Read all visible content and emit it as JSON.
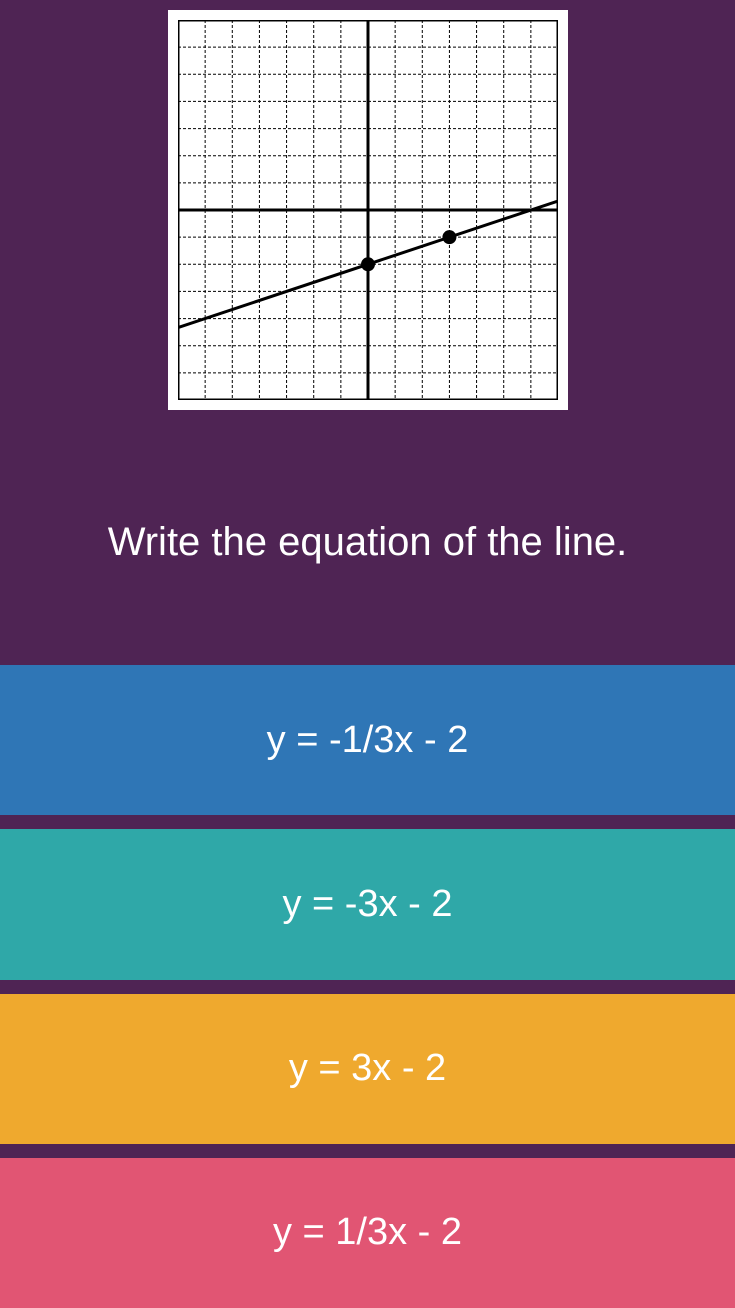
{
  "question": "Write the equation of the line.",
  "graph": {
    "background_color": "#ffffff",
    "frame_border_color": "#000000",
    "grid_color": "#000000",
    "grid_stroke": 1,
    "grid_dash": "3,2",
    "axis_color": "#000000",
    "axis_stroke": 3,
    "x_range": [
      -7,
      7
    ],
    "y_range": [
      -7,
      7
    ],
    "tick_step": 1,
    "line": {
      "slope": 0.333,
      "intercept": -2,
      "stroke": "#000000",
      "stroke_width": 3,
      "points": [
        {
          "x": 0,
          "y": -2,
          "r": 7
        },
        {
          "x": 3,
          "y": -1,
          "r": 7
        }
      ]
    }
  },
  "answers": [
    {
      "label": "y = -1/3x - 2",
      "bg_color": "#2f76b6"
    },
    {
      "label": "y = -3x - 2",
      "bg_color": "#2fa8a8"
    },
    {
      "label": "y = 3x - 2",
      "bg_color": "#efa92e"
    },
    {
      "label": "y = 1/3x - 2",
      "bg_color": "#e15573"
    }
  ],
  "page_bg": "#4f2454",
  "gap_color": "#4f2454",
  "text_color": "#ffffff",
  "question_fontsize": 40,
  "answer_fontsize": 38
}
